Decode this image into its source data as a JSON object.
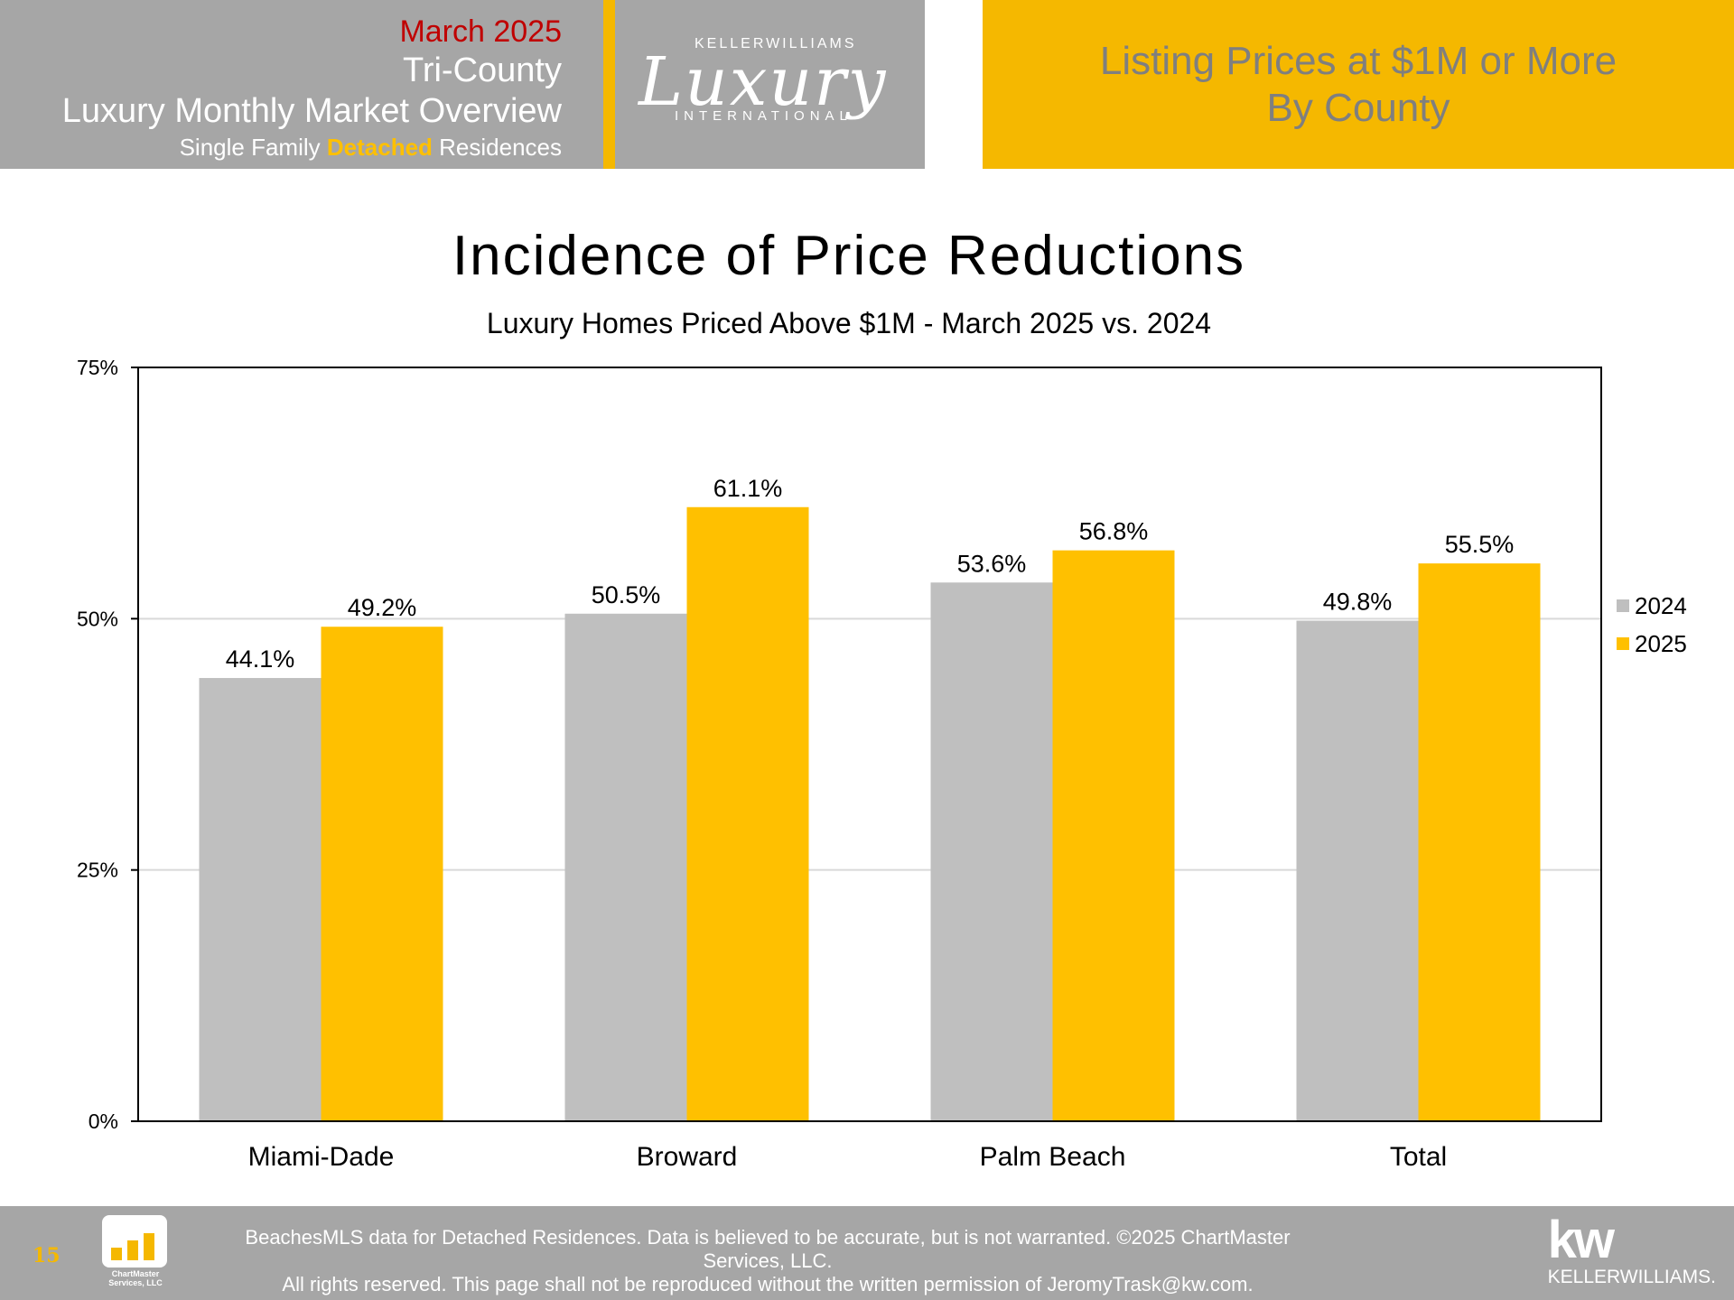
{
  "header": {
    "month": "March 2025",
    "region": "Tri-County",
    "overview": "Luxury Monthly Market Overview",
    "type_prefix": "Single Family ",
    "type_accent": "Detached",
    "type_suffix": " Residences",
    "logo_top": "KELLERWILLIAMS",
    "logo_script": "Luxury",
    "logo_bottom": "INTERNATIONAL",
    "section_line1": "Listing Prices at $1M or More",
    "section_line2": "By County"
  },
  "chart_data": {
    "type": "bar",
    "title": "Incidence of Price Reductions",
    "subtitle": "Luxury Homes Priced Above $1M - March 2025 vs. 2024",
    "categories": [
      "Miami-Dade",
      "Broward",
      "Palm Beach",
      "Total"
    ],
    "series": [
      {
        "name": "2024",
        "values": [
          44.1,
          50.5,
          53.6,
          49.8
        ],
        "labels": [
          "44.1%",
          "50.5%",
          "53.6%",
          "49.8%"
        ],
        "color": "#bfbfbf"
      },
      {
        "name": "2025",
        "values": [
          49.2,
          61.1,
          56.8,
          55.5
        ],
        "labels": [
          "49.2%",
          "61.1%",
          "56.8%",
          "55.5%"
        ],
        "color": "#ffc000"
      }
    ],
    "ylim": [
      0,
      75
    ],
    "yticks": [
      0,
      25,
      50,
      75
    ],
    "ytick_labels": [
      "0%",
      "25%",
      "50%",
      "75%"
    ],
    "grid": true,
    "legend_position": "right"
  },
  "footer": {
    "page_number": "15",
    "logo_text": "ChartMaster Services, LLC",
    "disclaimer_line1": "BeachesMLS data for Detached Residences.  Data is believed to be accurate, but is not warranted.   ©2025  ChartMaster Services, LLC.",
    "disclaimer_line2": "All rights reserved. This page shall not be reproduced without the written permission of JeromyTrask@kw.com.",
    "kw_mark": "kw",
    "kw_name": "KELLERWILLIAMS."
  }
}
